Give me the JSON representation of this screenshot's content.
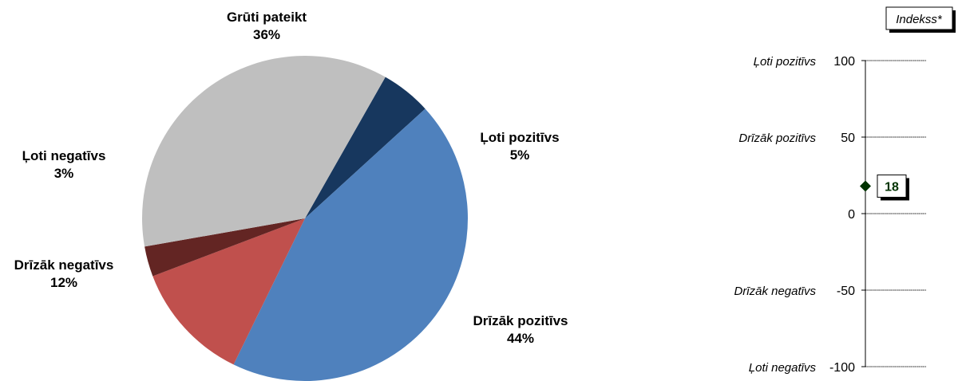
{
  "chart_data": [
    {
      "type": "pie",
      "slices": [
        {
          "label": "Ļoti pozitīvs",
          "pct_label": "5%",
          "value": 5,
          "color": "#17375e"
        },
        {
          "label": "Drīzāk pozitīvs",
          "pct_label": "44%",
          "value": 44,
          "color": "#4f81bd"
        },
        {
          "label": "Drīzāk negatīvs",
          "pct_label": "12%",
          "value": 12,
          "color": "#c0504d"
        },
        {
          "label": "Ļoti negatīvs",
          "pct_label": "3%",
          "value": 3,
          "color": "#632523"
        },
        {
          "label": "Grūti pateikt",
          "pct_label": "36%",
          "value": 36,
          "color": "#bfbfbf"
        }
      ]
    },
    {
      "type": "scatter",
      "title": "Indekss*",
      "ylim": [
        -100,
        100
      ],
      "yticks": [
        {
          "value": 100,
          "label": "100",
          "category": "Ļoti pozitīvs"
        },
        {
          "value": 50,
          "label": "50",
          "category": "Drīzāk  pozitīvs"
        },
        {
          "value": 0,
          "label": "0",
          "category": ""
        },
        {
          "value": -50,
          "label": "-50",
          "category": "Drīzāk negatīvs"
        },
        {
          "value": -100,
          "label": "-100",
          "category": "Ļoti negatīvs"
        }
      ],
      "points": [
        {
          "value": 18,
          "label": "18",
          "color": "#003300"
        }
      ]
    }
  ]
}
